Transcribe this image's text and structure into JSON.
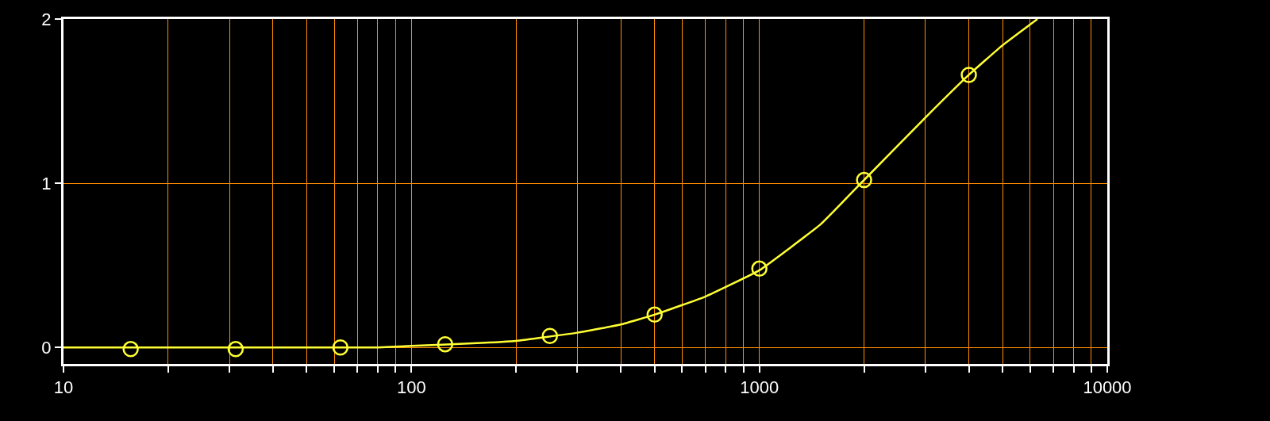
{
  "chart_data": {
    "type": "scatter",
    "log": "x",
    "grid": true,
    "xlim": [
      10,
      10000
    ],
    "ylim": [
      -0.1,
      2
    ],
    "xticks": [
      10,
      {
        "value": 20,
        "label": null
      },
      {
        "value": 30,
        "label": null
      },
      {
        "value": 40,
        "label": null
      },
      {
        "value": 50,
        "label": null
      },
      {
        "value": 60,
        "label": null
      },
      {
        "value": 70,
        "label": null
      },
      {
        "value": 80,
        "label": null
      },
      {
        "value": 90,
        "label": null
      },
      100,
      {
        "value": 200,
        "label": null
      },
      {
        "value": 300,
        "label": null
      },
      {
        "value": 400,
        "label": null
      },
      {
        "value": 500,
        "label": null
      },
      {
        "value": 600,
        "label": null
      },
      {
        "value": 700,
        "label": null
      },
      {
        "value": 800,
        "label": null
      },
      {
        "value": 900,
        "label": null
      },
      1000,
      {
        "value": 2000,
        "label": null
      },
      {
        "value": 3000,
        "label": null
      },
      {
        "value": 4000,
        "label": null
      },
      {
        "value": 5000,
        "label": null
      },
      {
        "value": 6000,
        "label": null
      },
      {
        "value": 7000,
        "label": null
      },
      {
        "value": 8000,
        "label": null
      },
      {
        "value": 9000,
        "label": null
      },
      10000
    ],
    "yticks": [
      0,
      1,
      2
    ],
    "series": [
      {
        "marker": "circle",
        "color": "#ffff33",
        "x": [
          15.6,
          31.25,
          62.5,
          125,
          250,
          500,
          1000,
          2000,
          4000
        ],
        "values": [
          -0.01,
          -0.01,
          0,
          0.02,
          0.07,
          0.2,
          0.48,
          1.02,
          1.66
        ]
      },
      {
        "type": "line",
        "marker": "none",
        "line_style": "solid",
        "color": "#ffff33",
        "x": [
          10,
          50,
          80,
          100,
          150,
          200,
          300,
          400,
          500,
          700,
          1000,
          1500,
          2000,
          3000,
          4000,
          5000,
          6300
        ],
        "values": [
          0,
          0,
          0,
          0.01,
          0.025,
          0.04,
          0.09,
          0.14,
          0.2,
          0.31,
          0.47,
          0.75,
          1.02,
          1.4,
          1.66,
          1.84,
          2.0
        ]
      }
    ]
  }
}
